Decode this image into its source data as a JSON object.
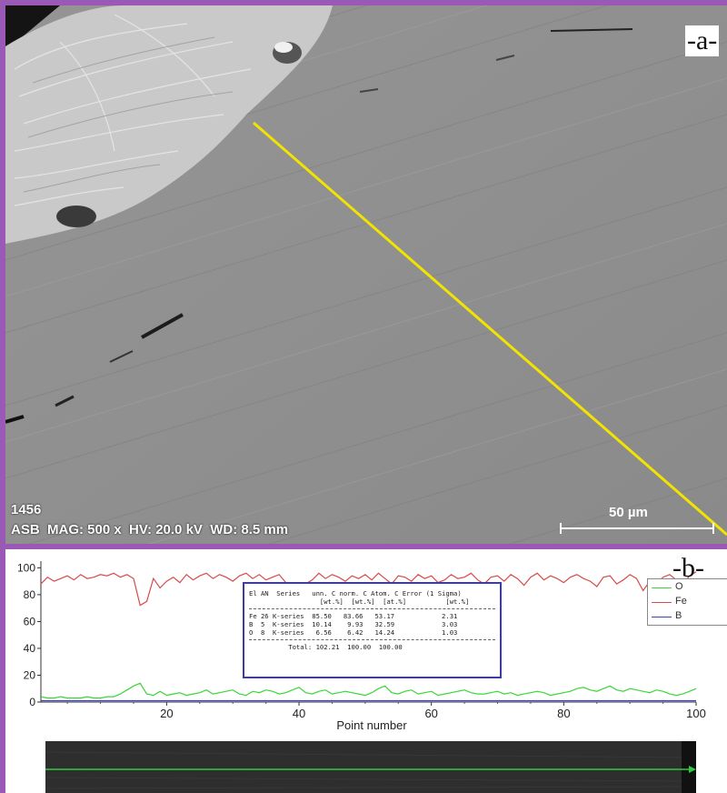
{
  "panel_a": {
    "label": "-a-",
    "image_id": "1456",
    "info_line": "ASB  MAG: 500 x  HV: 20.0 kV  WD: 8.5 mm",
    "scale_bar": "50 µm"
  },
  "panel_b": {
    "label": "-b-"
  },
  "colors": {
    "frame": "#9b59b6",
    "line_scan": "#f2e400",
    "O": "#3ad63a",
    "Fe": "#d94a4a",
    "B": "#4040c0"
  },
  "results_table": {
    "header1": "El AN  Series   unn. C norm. C Atom. C Error (1 Sigma)",
    "header2": "                  [wt.%]  [wt.%]  [at.%]          [wt.%]",
    "rows": [
      "Fe 26 K-series  85.50   83.66   53.17            2.31",
      "B  5  K-series  10.14    9.93   32.59            3.03",
      "O  8  K-series   6.56    6.42   14.24            1.03"
    ],
    "total": "          Total: 102.21  100.00  100.00"
  },
  "chart_data": {
    "type": "line",
    "xlabel": "Point number",
    "ylabel": "",
    "xlim": [
      1,
      100
    ],
    "ylim": [
      0,
      105
    ],
    "xticks": [
      20,
      40,
      60,
      80,
      100
    ],
    "yticks": [
      0,
      20,
      40,
      60,
      80,
      100
    ],
    "legend_position": "top-right",
    "series": [
      {
        "name": "O",
        "values": [
          4,
          3,
          3,
          4,
          3,
          3,
          3,
          4,
          3,
          3,
          4,
          4,
          6,
          9,
          12,
          14,
          6,
          5,
          8,
          5,
          6,
          7,
          5,
          6,
          7,
          9,
          6,
          7,
          8,
          9,
          6,
          5,
          8,
          7,
          9,
          8,
          6,
          7,
          9,
          11,
          7,
          6,
          8,
          9,
          6,
          7,
          8,
          7,
          6,
          5,
          7,
          10,
          12,
          7,
          6,
          8,
          9,
          6,
          7,
          8,
          5,
          6,
          7,
          8,
          9,
          7,
          6,
          6,
          7,
          8,
          6,
          7,
          5,
          6,
          7,
          8,
          7,
          5,
          6,
          7,
          8,
          10,
          11,
          9,
          8,
          10,
          12,
          9,
          8,
          10,
          9,
          8,
          7,
          9,
          8,
          6,
          5,
          6,
          8,
          10
        ]
      },
      {
        "name": "Fe",
        "values": [
          88,
          93,
          90,
          92,
          94,
          91,
          95,
          92,
          93,
          95,
          94,
          96,
          93,
          95,
          92,
          72,
          75,
          92,
          85,
          90,
          93,
          89,
          95,
          91,
          94,
          96,
          92,
          95,
          93,
          90,
          94,
          96,
          92,
          95,
          91,
          93,
          95,
          89,
          86,
          84,
          88,
          91,
          96,
          92,
          95,
          93,
          90,
          94,
          92,
          95,
          91,
          96,
          92,
          88,
          94,
          93,
          90,
          95,
          92,
          94,
          89,
          91,
          95,
          92,
          93,
          96,
          91,
          88,
          93,
          94,
          90,
          95,
          92,
          87,
          93,
          96,
          91,
          94,
          92,
          89,
          93,
          95,
          92,
          90,
          86,
          93,
          94,
          88,
          91,
          95,
          92,
          83,
          90,
          88,
          93,
          95,
          91,
          87,
          94,
          97
        ]
      },
      {
        "name": "B",
        "values": [
          1,
          1,
          1,
          1,
          1,
          1,
          1,
          1,
          1,
          1,
          1,
          1,
          1,
          1,
          1,
          1,
          1,
          1,
          1,
          1,
          1,
          1,
          1,
          1,
          1,
          1,
          1,
          1,
          1,
          1,
          1,
          1,
          1,
          1,
          1,
          1,
          1,
          1,
          1,
          1,
          1,
          1,
          1,
          1,
          1,
          1,
          1,
          1,
          1,
          1,
          1,
          1,
          1,
          1,
          1,
          1,
          1,
          1,
          1,
          1,
          1,
          1,
          1,
          1,
          1,
          1,
          1,
          1,
          1,
          1,
          1,
          1,
          1,
          1,
          1,
          1,
          1,
          1,
          1,
          1,
          1,
          1,
          1,
          1,
          1,
          1,
          1,
          1,
          1,
          1,
          1,
          1,
          1,
          1,
          1,
          1,
          1,
          1,
          1,
          1
        ]
      }
    ]
  }
}
